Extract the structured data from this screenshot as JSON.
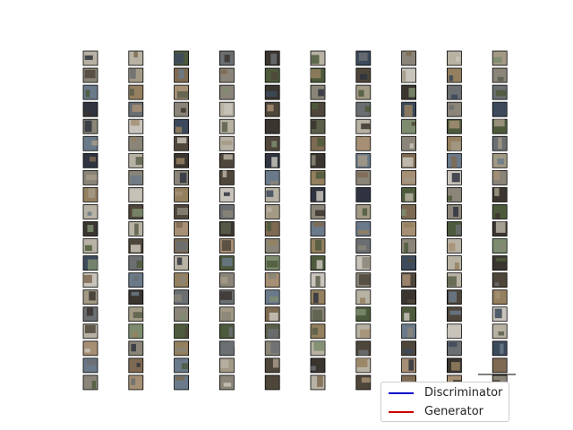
{
  "chart_data": {
    "type": "line",
    "title": "",
    "xlabel": "",
    "ylabel": "",
    "legend_position": "bottom-right",
    "series": [
      {
        "name": "Discriminator",
        "color": "#0000cc",
        "values": []
      },
      {
        "name": "Generator",
        "color": "#cc0000",
        "values": []
      }
    ]
  },
  "sample_grid": {
    "columns": 10,
    "rows": 20,
    "palette": [
      "#6b6f72",
      "#8a8578",
      "#4d5a3c",
      "#a39a86",
      "#3c4a5c",
      "#7e6a52",
      "#5a5f4a",
      "#b8b2a4",
      "#2f3440",
      "#94805f",
      "#6a7a8a",
      "#c9c4bb",
      "#4f463b",
      "#7d8c6e",
      "#a68f74",
      "#3b3530"
    ]
  }
}
